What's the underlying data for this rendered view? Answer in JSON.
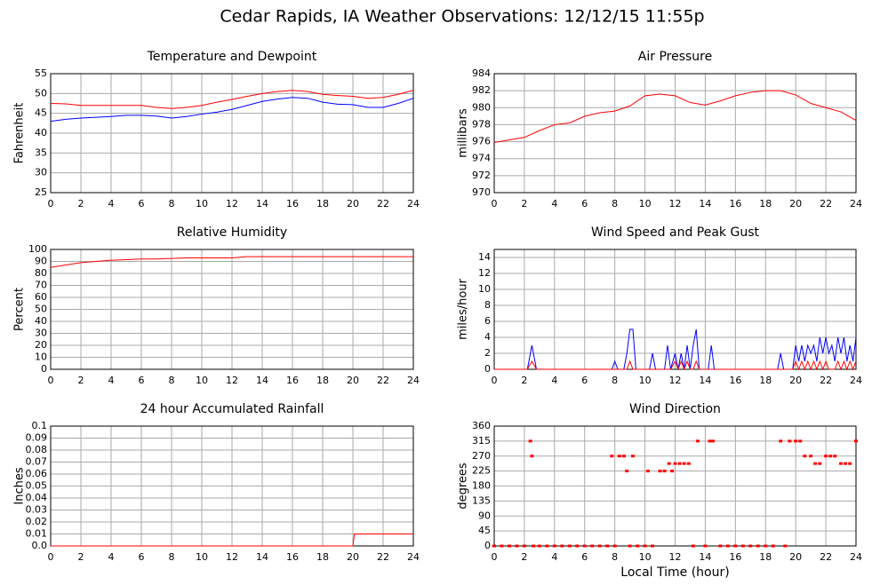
{
  "title": "Cedar Rapids, IA Weather Observations: 12/12/15 11:55p",
  "chart_data": [
    {
      "type": "line",
      "title": "Temperature and Dewpoint",
      "y_label": "Fahrenheit",
      "x": [
        0,
        1,
        2,
        3,
        4,
        5,
        6,
        7,
        8,
        9,
        10,
        11,
        12,
        13,
        14,
        15,
        16,
        17,
        18,
        19,
        20,
        21,
        22,
        23,
        24
      ],
      "series": [
        {
          "color": "#ff0000",
          "values": [
            47.5,
            47.4,
            47,
            47,
            47,
            47,
            47,
            46.5,
            46.2,
            46.5,
            47,
            47.8,
            48.5,
            49.3,
            50,
            50.5,
            50.8,
            50.5,
            49.8,
            49.5,
            49.3,
            48.8,
            49,
            49.8,
            50.8
          ]
        },
        {
          "color": "#0000ff",
          "values": [
            43,
            43.5,
            43.8,
            44,
            44.2,
            44.5,
            44.5,
            44.3,
            43.8,
            44.2,
            44.8,
            45.3,
            46,
            47,
            48,
            48.6,
            49,
            48.8,
            47.8,
            47.3,
            47.2,
            46.5,
            46.5,
            47.5,
            48.8
          ]
        }
      ],
      "xlim": [
        0,
        24
      ],
      "xticks": [
        0,
        2,
        4,
        6,
        8,
        10,
        12,
        14,
        16,
        18,
        20,
        22,
        24
      ],
      "ylim": [
        25,
        55
      ],
      "yticks": [
        25,
        30,
        35,
        40,
        45,
        50,
        55
      ],
      "grid": true
    },
    {
      "type": "line",
      "title": "Air Pressure",
      "y_label": "millibars",
      "x": [
        0,
        1,
        2,
        3,
        4,
        5,
        6,
        7,
        8,
        9,
        10,
        11,
        12,
        13,
        14,
        15,
        16,
        17,
        18,
        19,
        20,
        21,
        22,
        23,
        24
      ],
      "series": [
        {
          "color": "#ff0000",
          "values": [
            975.9,
            976.2,
            976.5,
            977.3,
            978,
            978.2,
            979,
            979.4,
            979.6,
            980.2,
            981.4,
            981.6,
            981.4,
            980.6,
            980.3,
            980.8,
            981.4,
            981.8,
            982,
            982,
            981.5,
            980.5,
            980,
            979.5,
            978.5
          ]
        }
      ],
      "xlim": [
        0,
        24
      ],
      "xticks": [
        0,
        2,
        4,
        6,
        8,
        10,
        12,
        14,
        16,
        18,
        20,
        22,
        24
      ],
      "ylim": [
        970,
        984
      ],
      "yticks": [
        970,
        972,
        974,
        976,
        978,
        980,
        982,
        984
      ],
      "grid": true
    },
    {
      "type": "line",
      "title": "Relative Humidity",
      "y_label": "Percent",
      "x": [
        0,
        1,
        2,
        3,
        4,
        5,
        6,
        7,
        8,
        9,
        10,
        11,
        12,
        13,
        14,
        15,
        16,
        17,
        18,
        19,
        20,
        21,
        22,
        23,
        24
      ],
      "series": [
        {
          "color": "#ff0000",
          "values": [
            85,
            87,
            89,
            90,
            91,
            91.5,
            92,
            92,
            92.5,
            93,
            93,
            93,
            93,
            94,
            94,
            94,
            94,
            94,
            94,
            94,
            94,
            94,
            94,
            94,
            94
          ]
        }
      ],
      "xlim": [
        0,
        24
      ],
      "xticks": [
        0,
        2,
        4,
        6,
        8,
        10,
        12,
        14,
        16,
        18,
        20,
        22,
        24
      ],
      "ylim": [
        0,
        100
      ],
      "yticks": [
        0,
        10,
        20,
        30,
        40,
        50,
        60,
        70,
        80,
        90,
        100
      ],
      "grid": true
    },
    {
      "type": "line",
      "title": "Wind Speed and Peak Gust",
      "y_label": "miles/hour",
      "x": [
        0,
        2.2,
        2.5,
        2.8,
        7.8,
        8,
        8.2,
        8.6,
        8.8,
        9,
        9.2,
        9.4,
        10.3,
        10.5,
        10.7,
        11.3,
        11.5,
        11.7,
        12,
        12.2,
        12.4,
        12.6,
        12.8,
        13,
        13.2,
        13.4,
        13.6,
        14.2,
        14.4,
        14.6,
        18.8,
        19,
        19.2,
        19.8,
        20,
        20.2,
        20.4,
        20.6,
        20.8,
        21,
        21.2,
        21.4,
        21.6,
        21.8,
        22,
        22.2,
        22.4,
        22.6,
        22.8,
        23,
        23.2,
        23.4,
        23.6,
        23.8,
        24
      ],
      "series": [
        {
          "color": "#0000ff",
          "values": [
            0,
            0,
            3,
            0,
            0,
            1,
            0,
            0,
            2,
            5,
            5,
            0,
            0,
            2,
            0,
            0,
            3,
            0,
            2,
            0,
            2,
            0,
            3,
            0,
            3,
            5,
            0,
            0,
            3,
            0,
            0,
            2,
            0,
            0,
            3,
            1,
            3,
            1,
            3,
            2,
            3,
            1,
            4,
            2,
            4,
            2,
            3,
            1,
            4,
            2,
            4,
            1,
            3,
            1,
            4
          ]
        },
        {
          "color": "#ff0000",
          "values": [
            0,
            0,
            1,
            0,
            0,
            0,
            0,
            0,
            0,
            1,
            0,
            0,
            0,
            0,
            0,
            0,
            0,
            0,
            1,
            0,
            1,
            0,
            1,
            0,
            0,
            1,
            0,
            0,
            0,
            0,
            0,
            0,
            0,
            0,
            1,
            0,
            1,
            0,
            1,
            0,
            1,
            0,
            1,
            0,
            1,
            0,
            0,
            0,
            1,
            0,
            1,
            0,
            1,
            0,
            1
          ]
        }
      ],
      "xlim": [
        0,
        24
      ],
      "xticks": [
        0,
        2,
        4,
        6,
        8,
        10,
        12,
        14,
        16,
        18,
        20,
        22,
        24
      ],
      "ylim": [
        0,
        15
      ],
      "yticks": [
        0,
        2,
        4,
        6,
        8,
        10,
        12,
        14
      ],
      "grid": true
    },
    {
      "type": "line",
      "title": "24 hour Accumulated Rainfall",
      "y_label": "Inches",
      "x": [
        0,
        20,
        20.1,
        24
      ],
      "series": [
        {
          "color": "#ff0000",
          "values": [
            0,
            0,
            0.01,
            0.01
          ]
        }
      ],
      "xlim": [
        0,
        24
      ],
      "xticks": [
        0,
        2,
        4,
        6,
        8,
        10,
        12,
        14,
        16,
        18,
        20,
        22,
        24
      ],
      "ylim": [
        0,
        0.1
      ],
      "yticks": [
        {
          "value": 0,
          "label": "0.0"
        },
        0.01,
        0.02,
        0.03,
        0.04,
        0.05,
        0.06,
        0.07,
        0.08,
        0.09,
        0.1
      ],
      "grid": true
    },
    {
      "type": "scatter",
      "title": "Wind Direction",
      "y_label": "degrees",
      "x_label": "Local Time (hour)",
      "x": [
        0,
        0.5,
        1,
        1.5,
        2,
        2.4,
        2.5,
        2.6,
        3,
        3.5,
        4,
        4.5,
        5,
        5.5,
        6,
        6.5,
        7,
        7.5,
        7.8,
        8,
        8.3,
        8.6,
        8.8,
        9,
        9.2,
        9.5,
        10,
        10.2,
        10.5,
        11,
        11.3,
        11.6,
        11.8,
        12,
        12.3,
        12.6,
        12.9,
        13.2,
        13.5,
        14,
        14.3,
        14.5,
        15,
        15.5,
        16,
        16.5,
        17,
        17.5,
        18,
        18.5,
        19,
        19.3,
        19.6,
        20,
        20.3,
        20.6,
        21,
        21.3,
        21.6,
        22,
        22.3,
        22.6,
        23,
        23.3,
        23.6,
        24
      ],
      "series": [
        {
          "color": "#ff0000",
          "values": [
            0,
            0,
            0,
            0,
            0,
            315,
            270,
            0,
            0,
            0,
            0,
            0,
            0,
            0,
            0,
            0,
            0,
            0,
            270,
            0,
            270,
            270,
            225,
            0,
            270,
            0,
            0,
            225,
            0,
            225,
            225,
            247.5,
            225,
            247.5,
            247.5,
            247.5,
            247.5,
            0,
            315,
            0,
            315,
            315,
            0,
            0,
            0,
            0,
            0,
            0,
            0,
            0,
            315,
            0,
            315,
            315,
            315,
            270,
            270,
            247.5,
            247.5,
            270,
            270,
            270,
            247.5,
            247.5,
            247.5,
            315
          ]
        }
      ],
      "xlim": [
        0,
        24
      ],
      "xticks": [
        0,
        2,
        4,
        6,
        8,
        10,
        12,
        14,
        16,
        18,
        20,
        22,
        24
      ],
      "ylim": [
        0,
        360
      ],
      "yticks": [
        0,
        45,
        90,
        135,
        180,
        225,
        270,
        315,
        360
      ],
      "grid": true
    }
  ]
}
